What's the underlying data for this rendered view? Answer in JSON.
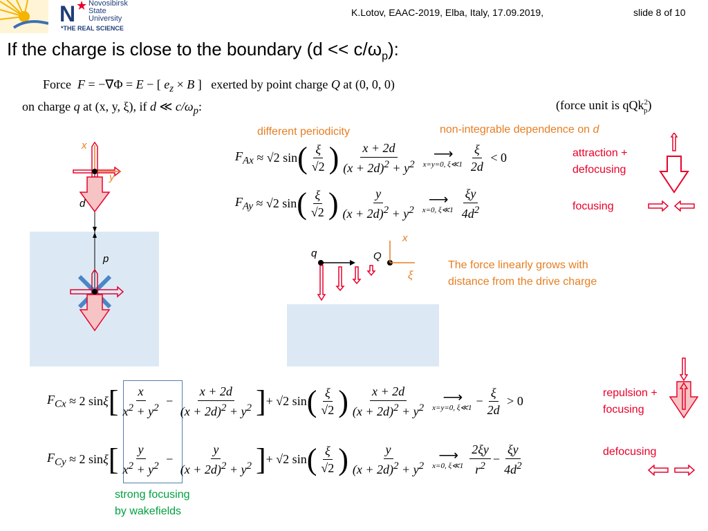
{
  "header": {
    "logo_lines": [
      "Novosibirsk",
      "State",
      "University"
    ],
    "logo_tagline": "*THE REAL SCIENCE",
    "logo_letter": "N",
    "meta": "K.Lotov, EAAC-2019, Elba, Italy, 17.09.2019,",
    "slide_num": "slide 8 of 10"
  },
  "title": {
    "main": "If the charge is close to the boundary (d << c/ω",
    "sub": "p",
    "end": "):"
  },
  "intro": {
    "line1_a": "Force",
    "line1_b": "exerted by point charge",
    "line1_c": "at (0, 0, 0)",
    "line2_a": "on charge",
    "line2_b": "at (x, y, ξ),  if",
    "force_unit": "(force unit is qQk",
    "force_unit_sup": "2",
    "force_unit_sub": "p",
    "force_unit_end": ")"
  },
  "notes": {
    "periodicity": "different periodicity",
    "nonint_a": "non-integrable dependence on ",
    "nonint_b": "d",
    "attraction_1": "attraction +",
    "attraction_2": "defocusing",
    "focusing": "focusing",
    "linear_1": "The force linearly grows with",
    "linear_2": "distance from the drive charge",
    "repulsion_1": "repulsion +",
    "repulsion_2": "focusing",
    "defocusing": "defocusing",
    "strong_1": "strong focusing",
    "strong_2": "by wakefields"
  },
  "labels": {
    "x": "x",
    "y": "y",
    "d": "d",
    "p": "p",
    "q": "q",
    "Q": "Q",
    "x2": "x",
    "xi": "ξ"
  },
  "colors": {
    "accent_red": "#e8002a",
    "orange": "#e67e22",
    "green": "#00a040",
    "plasma": "#dce9f5",
    "blue_arrow": "#4a86c8"
  }
}
